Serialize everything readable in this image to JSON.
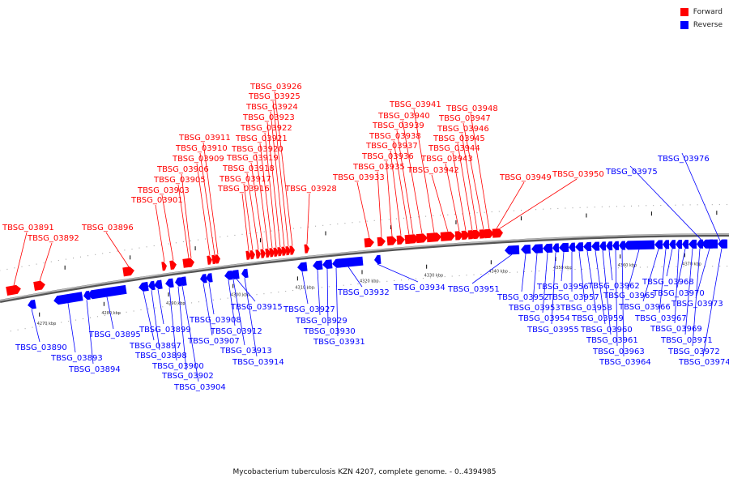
{
  "colors": {
    "forward": "#ff0000",
    "reverse": "#0000ff",
    "backbone": "#888888"
  },
  "legend": [
    {
      "label": "Forward",
      "color": "#ff0000"
    },
    {
      "label": "Reverse",
      "color": "#0000ff"
    }
  ],
  "caption": "Mycobacterium tuberculosis KZN 4207, complete genome. - 0..4394985",
  "tick_labels": [
    "4270 kbp",
    "4280 kbp",
    "4290 kbp",
    "4300 kbp",
    "4310 kbp",
    "4320 kbp",
    "4330 kbp",
    "4340 kbp",
    "4350 kbp",
    "4360 kbp",
    "4370 kbp"
  ],
  "genes": [
    {
      "name": "TBSG_03890",
      "strand": "reverse"
    },
    {
      "name": "TBSG_03891",
      "strand": "forward"
    },
    {
      "name": "TBSG_03892",
      "strand": "forward"
    },
    {
      "name": "TBSG_03893",
      "strand": "reverse"
    },
    {
      "name": "TBSG_03894",
      "strand": "reverse"
    },
    {
      "name": "TBSG_03895",
      "strand": "reverse"
    },
    {
      "name": "TBSG_03896",
      "strand": "forward"
    },
    {
      "name": "TBSG_03897",
      "strand": "reverse"
    },
    {
      "name": "TBSG_03898",
      "strand": "reverse"
    },
    {
      "name": "TBSG_03899",
      "strand": "reverse"
    },
    {
      "name": "TBSG_03900",
      "strand": "reverse"
    },
    {
      "name": "TBSG_03901",
      "strand": "forward"
    },
    {
      "name": "TBSG_03902",
      "strand": "reverse"
    },
    {
      "name": "TBSG_03903",
      "strand": "forward"
    },
    {
      "name": "TBSG_03904",
      "strand": "reverse"
    },
    {
      "name": "TBSG_03905",
      "strand": "forward"
    },
    {
      "name": "TBSG_03906",
      "strand": "forward"
    },
    {
      "name": "TBSG_03907",
      "strand": "reverse"
    },
    {
      "name": "TBSG_03908",
      "strand": "reverse"
    },
    {
      "name": "TBSG_03909",
      "strand": "forward"
    },
    {
      "name": "TBSG_03910",
      "strand": "forward"
    },
    {
      "name": "TBSG_03911",
      "strand": "forward"
    },
    {
      "name": "TBSG_03912",
      "strand": "reverse"
    },
    {
      "name": "TBSG_03913",
      "strand": "reverse"
    },
    {
      "name": "TBSG_03914",
      "strand": "reverse"
    },
    {
      "name": "TBSG_03915",
      "strand": "reverse"
    },
    {
      "name": "TBSG_03916",
      "strand": "forward"
    },
    {
      "name": "TBSG_03917",
      "strand": "forward"
    },
    {
      "name": "TBSG_03918",
      "strand": "forward"
    },
    {
      "name": "TBSG_03919",
      "strand": "forward"
    },
    {
      "name": "TBSG_03920",
      "strand": "forward"
    },
    {
      "name": "TBSG_03921",
      "strand": "forward"
    },
    {
      "name": "TBSG_03922",
      "strand": "forward"
    },
    {
      "name": "TBSG_03923",
      "strand": "forward"
    },
    {
      "name": "TBSG_03924",
      "strand": "forward"
    },
    {
      "name": "TBSG_03925",
      "strand": "forward"
    },
    {
      "name": "TBSG_03926",
      "strand": "forward"
    },
    {
      "name": "TBSG_03927",
      "strand": "reverse"
    },
    {
      "name": "TBSG_03928",
      "strand": "forward"
    },
    {
      "name": "TBSG_03929",
      "strand": "reverse"
    },
    {
      "name": "TBSG_03930",
      "strand": "reverse"
    },
    {
      "name": "TBSG_03931",
      "strand": "reverse"
    },
    {
      "name": "TBSG_03932",
      "strand": "reverse"
    },
    {
      "name": "TBSG_03933",
      "strand": "forward"
    },
    {
      "name": "TBSG_03934",
      "strand": "reverse"
    },
    {
      "name": "TBSG_03935",
      "strand": "forward"
    },
    {
      "name": "TBSG_03936",
      "strand": "forward"
    },
    {
      "name": "TBSG_03937",
      "strand": "forward"
    },
    {
      "name": "TBSG_03938",
      "strand": "forward"
    },
    {
      "name": "TBSG_03939",
      "strand": "forward"
    },
    {
      "name": "TBSG_03940",
      "strand": "forward"
    },
    {
      "name": "TBSG_03941",
      "strand": "forward"
    },
    {
      "name": "TBSG_03942",
      "strand": "forward"
    },
    {
      "name": "TBSG_03943",
      "strand": "forward"
    },
    {
      "name": "TBSG_03944",
      "strand": "forward"
    },
    {
      "name": "TBSG_03945",
      "strand": "forward"
    },
    {
      "name": "TBSG_03946",
      "strand": "forward"
    },
    {
      "name": "TBSG_03947",
      "strand": "forward"
    },
    {
      "name": "TBSG_03948",
      "strand": "forward"
    },
    {
      "name": "TBSG_03949",
      "strand": "forward"
    },
    {
      "name": "TBSG_03950",
      "strand": "forward"
    },
    {
      "name": "TBSG_03951",
      "strand": "reverse"
    },
    {
      "name": "TBSG_03952",
      "strand": "reverse"
    },
    {
      "name": "TBSG_03953",
      "strand": "reverse"
    },
    {
      "name": "TBSG_03954",
      "strand": "reverse"
    },
    {
      "name": "TBSG_03955",
      "strand": "reverse"
    },
    {
      "name": "TBSG_03956",
      "strand": "reverse"
    },
    {
      "name": "TBSG_03957",
      "strand": "reverse"
    },
    {
      "name": "TBSG_03958",
      "strand": "reverse"
    },
    {
      "name": "TBSG_03959",
      "strand": "reverse"
    },
    {
      "name": "TBSG_03960",
      "strand": "reverse"
    },
    {
      "name": "TBSG_03961",
      "strand": "reverse"
    },
    {
      "name": "TBSG_03962",
      "strand": "reverse"
    },
    {
      "name": "TBSG_03963",
      "strand": "reverse"
    },
    {
      "name": "TBSG_03964",
      "strand": "reverse"
    },
    {
      "name": "TBSG_03965",
      "strand": "reverse"
    },
    {
      "name": "TBSG_03966",
      "strand": "reverse"
    },
    {
      "name": "TBSG_03967",
      "strand": "reverse"
    },
    {
      "name": "TBSG_03968",
      "strand": "reverse"
    },
    {
      "name": "TBSG_03969",
      "strand": "reverse"
    },
    {
      "name": "TBSG_03970",
      "strand": "reverse"
    },
    {
      "name": "TBSG_03971",
      "strand": "reverse"
    },
    {
      "name": "TBSG_03972",
      "strand": "reverse"
    },
    {
      "name": "TBSG_03973",
      "strand": "reverse"
    },
    {
      "name": "TBSG_03974",
      "strand": "reverse"
    },
    {
      "name": "TBSG_03975",
      "strand": "reverse"
    },
    {
      "name": "TBSG_03976",
      "strand": "reverse"
    }
  ]
}
